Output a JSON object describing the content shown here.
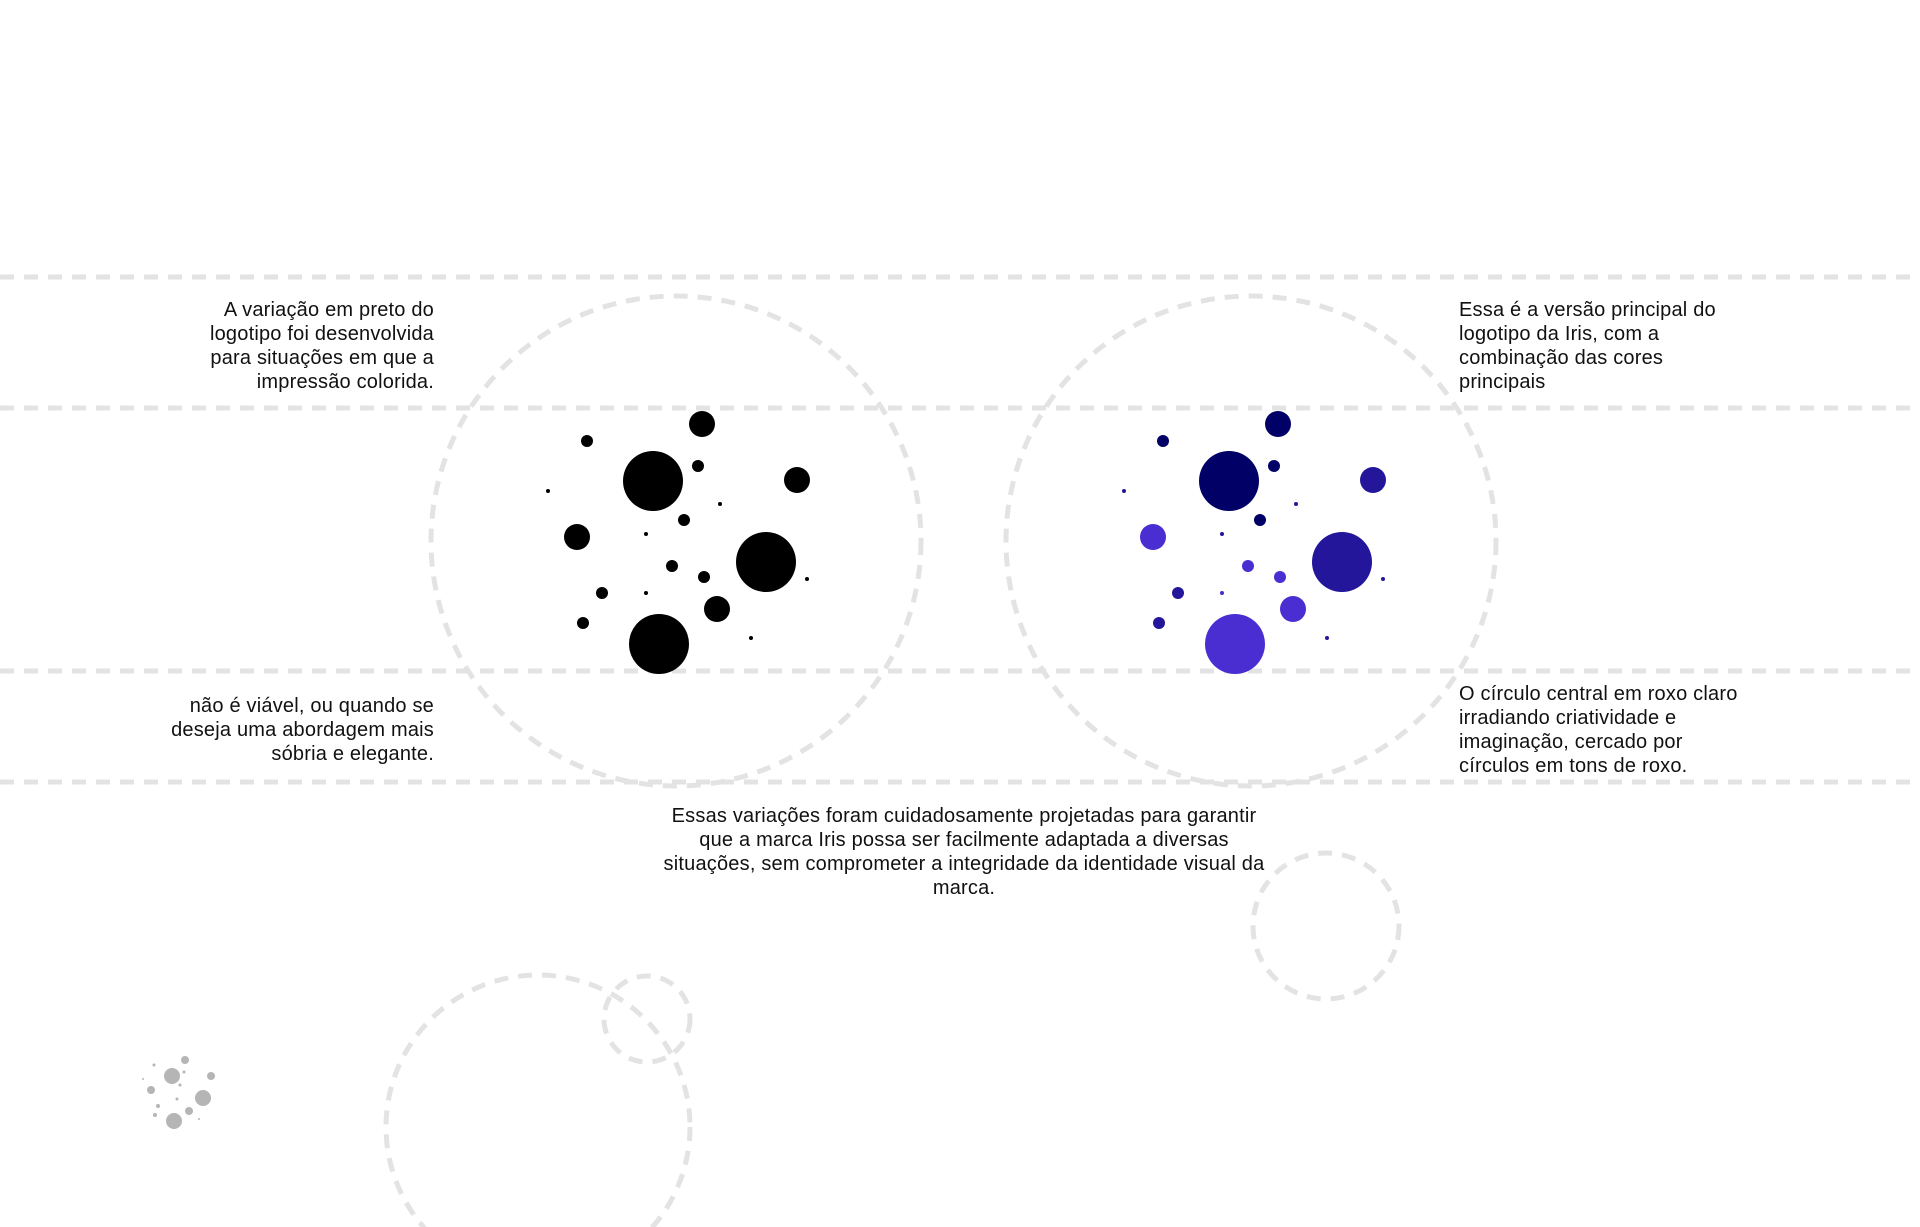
{
  "texts": {
    "black_intro": [
      "A variação em preto do",
      "logotipo foi desenvolvida",
      "para situações em que a",
      "impressão colorida."
    ],
    "black_continued": [
      "não é viável, ou quando se",
      "deseja uma abordagem mais",
      "sóbria e elegante."
    ],
    "primary_intro": [
      "Essa é a versão principal do",
      "logotipo da Iris, com a",
      "combinação das cores",
      "principais"
    ],
    "primary_continued": [
      "O círculo central em roxo claro",
      "irradiando criatividade e",
      "imaginação, cercado por",
      "círculos em tons de roxo."
    ],
    "summary": [
      "Essas variações foram cuidadosamente projetadas para garantir",
      "que a marca Iris possa ser facilmente adaptada a diversas",
      "situações, sem comprometer a integridade da identidade visual da",
      "marca."
    ]
  },
  "colors": {
    "guide": "#e3e3e3",
    "black_logo": "#000000",
    "navy": "#000066",
    "indigo": "#23169b",
    "violet": "#4a2ed1",
    "grey_logo": "#b5b5b5"
  },
  "logos": {
    "black": "logo-black-variant",
    "primary": "logo-primary-variant",
    "small": "logo-grey-small"
  }
}
